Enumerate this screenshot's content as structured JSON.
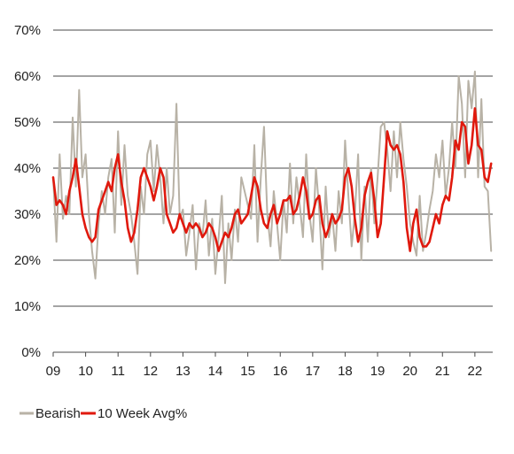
{
  "chart_data": {
    "type": "line",
    "title": "",
    "xlabel": "",
    "ylabel": "",
    "x_range": [
      2009,
      2022.55
    ],
    "ylim": [
      0,
      70
    ],
    "y_ticks": [
      {
        "value": 0,
        "label": "0%"
      },
      {
        "value": 10,
        "label": "10%"
      },
      {
        "value": 20,
        "label": "20%"
      },
      {
        "value": 30,
        "label": "30%"
      },
      {
        "value": 40,
        "label": "40%"
      },
      {
        "value": 50,
        "label": "50%"
      },
      {
        "value": 60,
        "label": "60%"
      },
      {
        "value": 70,
        "label": "70%"
      }
    ],
    "x_ticks": [
      {
        "value": 2009,
        "label": "09"
      },
      {
        "value": 2010,
        "label": "10"
      },
      {
        "value": 2011,
        "label": "11"
      },
      {
        "value": 2012,
        "label": "12"
      },
      {
        "value": 2013,
        "label": "13"
      },
      {
        "value": 2014,
        "label": "14"
      },
      {
        "value": 2015,
        "label": "15"
      },
      {
        "value": 2016,
        "label": "16"
      },
      {
        "value": 2017,
        "label": "17"
      },
      {
        "value": 2018,
        "label": "18"
      },
      {
        "value": 2019,
        "label": "19"
      },
      {
        "value": 2020,
        "label": "20"
      },
      {
        "value": 2021,
        "label": "21"
      },
      {
        "value": 2022,
        "label": "22"
      }
    ],
    "grid": "horizontal",
    "legend": "bottom-left",
    "series": [
      {
        "name": "Bearish",
        "color": "#b8b2a6",
        "x": [
          2009.0,
          2009.1,
          2009.2,
          2009.3,
          2009.4,
          2009.5,
          2009.6,
          2009.7,
          2009.8,
          2009.9,
          2010.0,
          2010.1,
          2010.2,
          2010.3,
          2010.4,
          2010.5,
          2010.6,
          2010.7,
          2010.8,
          2010.9,
          2011.0,
          2011.1,
          2011.2,
          2011.3,
          2011.4,
          2011.5,
          2011.6,
          2011.7,
          2011.8,
          2011.9,
          2012.0,
          2012.1,
          2012.2,
          2012.3,
          2012.4,
          2012.5,
          2012.6,
          2012.7,
          2012.8,
          2012.9,
          2013.0,
          2013.1,
          2013.2,
          2013.3,
          2013.4,
          2013.5,
          2013.6,
          2013.7,
          2013.8,
          2013.9,
          2014.0,
          2014.1,
          2014.2,
          2014.3,
          2014.4,
          2014.5,
          2014.6,
          2014.7,
          2014.8,
          2014.9,
          2015.0,
          2015.1,
          2015.2,
          2015.3,
          2015.4,
          2015.5,
          2015.6,
          2015.7,
          2015.8,
          2015.9,
          2016.0,
          2016.1,
          2016.2,
          2016.3,
          2016.4,
          2016.5,
          2016.6,
          2016.7,
          2016.8,
          2016.9,
          2017.0,
          2017.1,
          2017.2,
          2017.3,
          2017.4,
          2017.5,
          2017.6,
          2017.7,
          2017.8,
          2017.9,
          2018.0,
          2018.1,
          2018.2,
          2018.3,
          2018.4,
          2018.5,
          2018.6,
          2018.7,
          2018.8,
          2018.9,
          2019.0,
          2019.1,
          2019.2,
          2019.3,
          2019.4,
          2019.5,
          2019.6,
          2019.7,
          2019.8,
          2019.9,
          2020.0,
          2020.1,
          2020.2,
          2020.3,
          2020.4,
          2020.5,
          2020.6,
          2020.7,
          2020.8,
          2020.9,
          2021.0,
          2021.1,
          2021.2,
          2021.3,
          2021.4,
          2021.5,
          2021.6,
          2021.7,
          2021.8,
          2021.9,
          2022.0,
          2022.1,
          2022.2,
          2022.3,
          2022.4,
          2022.5
        ],
        "values": [
          38,
          24,
          43,
          29,
          34,
          30,
          51,
          36,
          57,
          38,
          43,
          30,
          22,
          16,
          28,
          35,
          30,
          38,
          42,
          26,
          48,
          32,
          45,
          34,
          30,
          24,
          17,
          36,
          30,
          43,
          46,
          35,
          45,
          38,
          28,
          40,
          30,
          34,
          54,
          29,
          31,
          21,
          26,
          32,
          18,
          28,
          25,
          33,
          21,
          29,
          17,
          25,
          34,
          15,
          28,
          20,
          31,
          24,
          38,
          35,
          32,
          29,
          45,
          24,
          38,
          49,
          30,
          23,
          35,
          28,
          20,
          33,
          26,
          41,
          28,
          38,
          32,
          25,
          43,
          30,
          24,
          40,
          31,
          18,
          36,
          25,
          30,
          22,
          35,
          28,
          46,
          34,
          23,
          30,
          43,
          20,
          36,
          24,
          40,
          28,
          38,
          49,
          50,
          44,
          35,
          48,
          38,
          50,
          42,
          36,
          28,
          24,
          21,
          34,
          22,
          26,
          31,
          35,
          43,
          38,
          46,
          34,
          40,
          50,
          40,
          60,
          54,
          38,
          59,
          53,
          61,
          38,
          55,
          36,
          35,
          22
        ]
      },
      {
        "name": "10 Week Avg%",
        "color": "#e0190d",
        "x": [
          2009.0,
          2009.1,
          2009.2,
          2009.3,
          2009.4,
          2009.5,
          2009.6,
          2009.7,
          2009.8,
          2009.9,
          2010.0,
          2010.1,
          2010.2,
          2010.3,
          2010.4,
          2010.5,
          2010.6,
          2010.7,
          2010.8,
          2010.9,
          2011.0,
          2011.1,
          2011.2,
          2011.3,
          2011.4,
          2011.5,
          2011.6,
          2011.7,
          2011.8,
          2011.9,
          2012.0,
          2012.1,
          2012.2,
          2012.3,
          2012.4,
          2012.5,
          2012.6,
          2012.7,
          2012.8,
          2012.9,
          2013.0,
          2013.1,
          2013.2,
          2013.3,
          2013.4,
          2013.5,
          2013.6,
          2013.7,
          2013.8,
          2013.9,
          2014.0,
          2014.1,
          2014.2,
          2014.3,
          2014.4,
          2014.5,
          2014.6,
          2014.7,
          2014.8,
          2014.9,
          2015.0,
          2015.1,
          2015.2,
          2015.3,
          2015.4,
          2015.5,
          2015.6,
          2015.7,
          2015.8,
          2015.9,
          2016.0,
          2016.1,
          2016.2,
          2016.3,
          2016.4,
          2016.5,
          2016.6,
          2016.7,
          2016.8,
          2016.9,
          2017.0,
          2017.1,
          2017.2,
          2017.3,
          2017.4,
          2017.5,
          2017.6,
          2017.7,
          2017.8,
          2017.9,
          2018.0,
          2018.1,
          2018.2,
          2018.3,
          2018.4,
          2018.5,
          2018.6,
          2018.7,
          2018.8,
          2018.9,
          2019.0,
          2019.1,
          2019.2,
          2019.3,
          2019.4,
          2019.5,
          2019.6,
          2019.7,
          2019.8,
          2019.9,
          2020.0,
          2020.1,
          2020.2,
          2020.3,
          2020.4,
          2020.5,
          2020.6,
          2020.7,
          2020.8,
          2020.9,
          2021.0,
          2021.1,
          2021.2,
          2021.3,
          2021.4,
          2021.5,
          2021.6,
          2021.7,
          2021.8,
          2021.9,
          2022.0,
          2022.1,
          2022.2,
          2022.3,
          2022.4,
          2022.5
        ],
        "values": [
          38,
          32,
          33,
          32,
          30,
          35,
          38,
          42,
          36,
          30,
          27,
          25,
          24,
          25,
          31,
          33,
          35,
          37,
          35,
          40,
          43,
          37,
          33,
          27,
          24,
          26,
          31,
          38,
          40,
          38,
          36,
          33,
          36,
          40,
          38,
          30,
          28,
          26,
          27,
          30,
          28,
          26,
          28,
          27,
          28,
          27,
          25,
          26,
          28,
          27,
          25,
          22,
          24,
          26,
          25,
          27,
          30,
          31,
          28,
          29,
          30,
          34,
          38,
          36,
          31,
          28,
          27,
          30,
          32,
          28,
          30,
          33,
          33,
          34,
          30,
          31,
          34,
          38,
          35,
          29,
          30,
          33,
          34,
          28,
          25,
          27,
          30,
          28,
          29,
          31,
          38,
          40,
          36,
          29,
          24,
          27,
          34,
          37,
          39,
          33,
          25,
          28,
          38,
          48,
          45,
          44,
          45,
          43,
          37,
          27,
          22,
          28,
          31,
          25,
          23,
          23,
          24,
          27,
          30,
          28,
          32,
          34,
          33,
          38,
          46,
          44,
          50,
          49,
          41,
          45,
          53,
          45,
          44,
          38,
          37,
          41
        ]
      }
    ]
  },
  "legend": {
    "items": [
      {
        "name": "Bearish",
        "color": "#b8b2a6"
      },
      {
        "name": "10 Week Avg%",
        "color": "#e0190d"
      }
    ]
  }
}
